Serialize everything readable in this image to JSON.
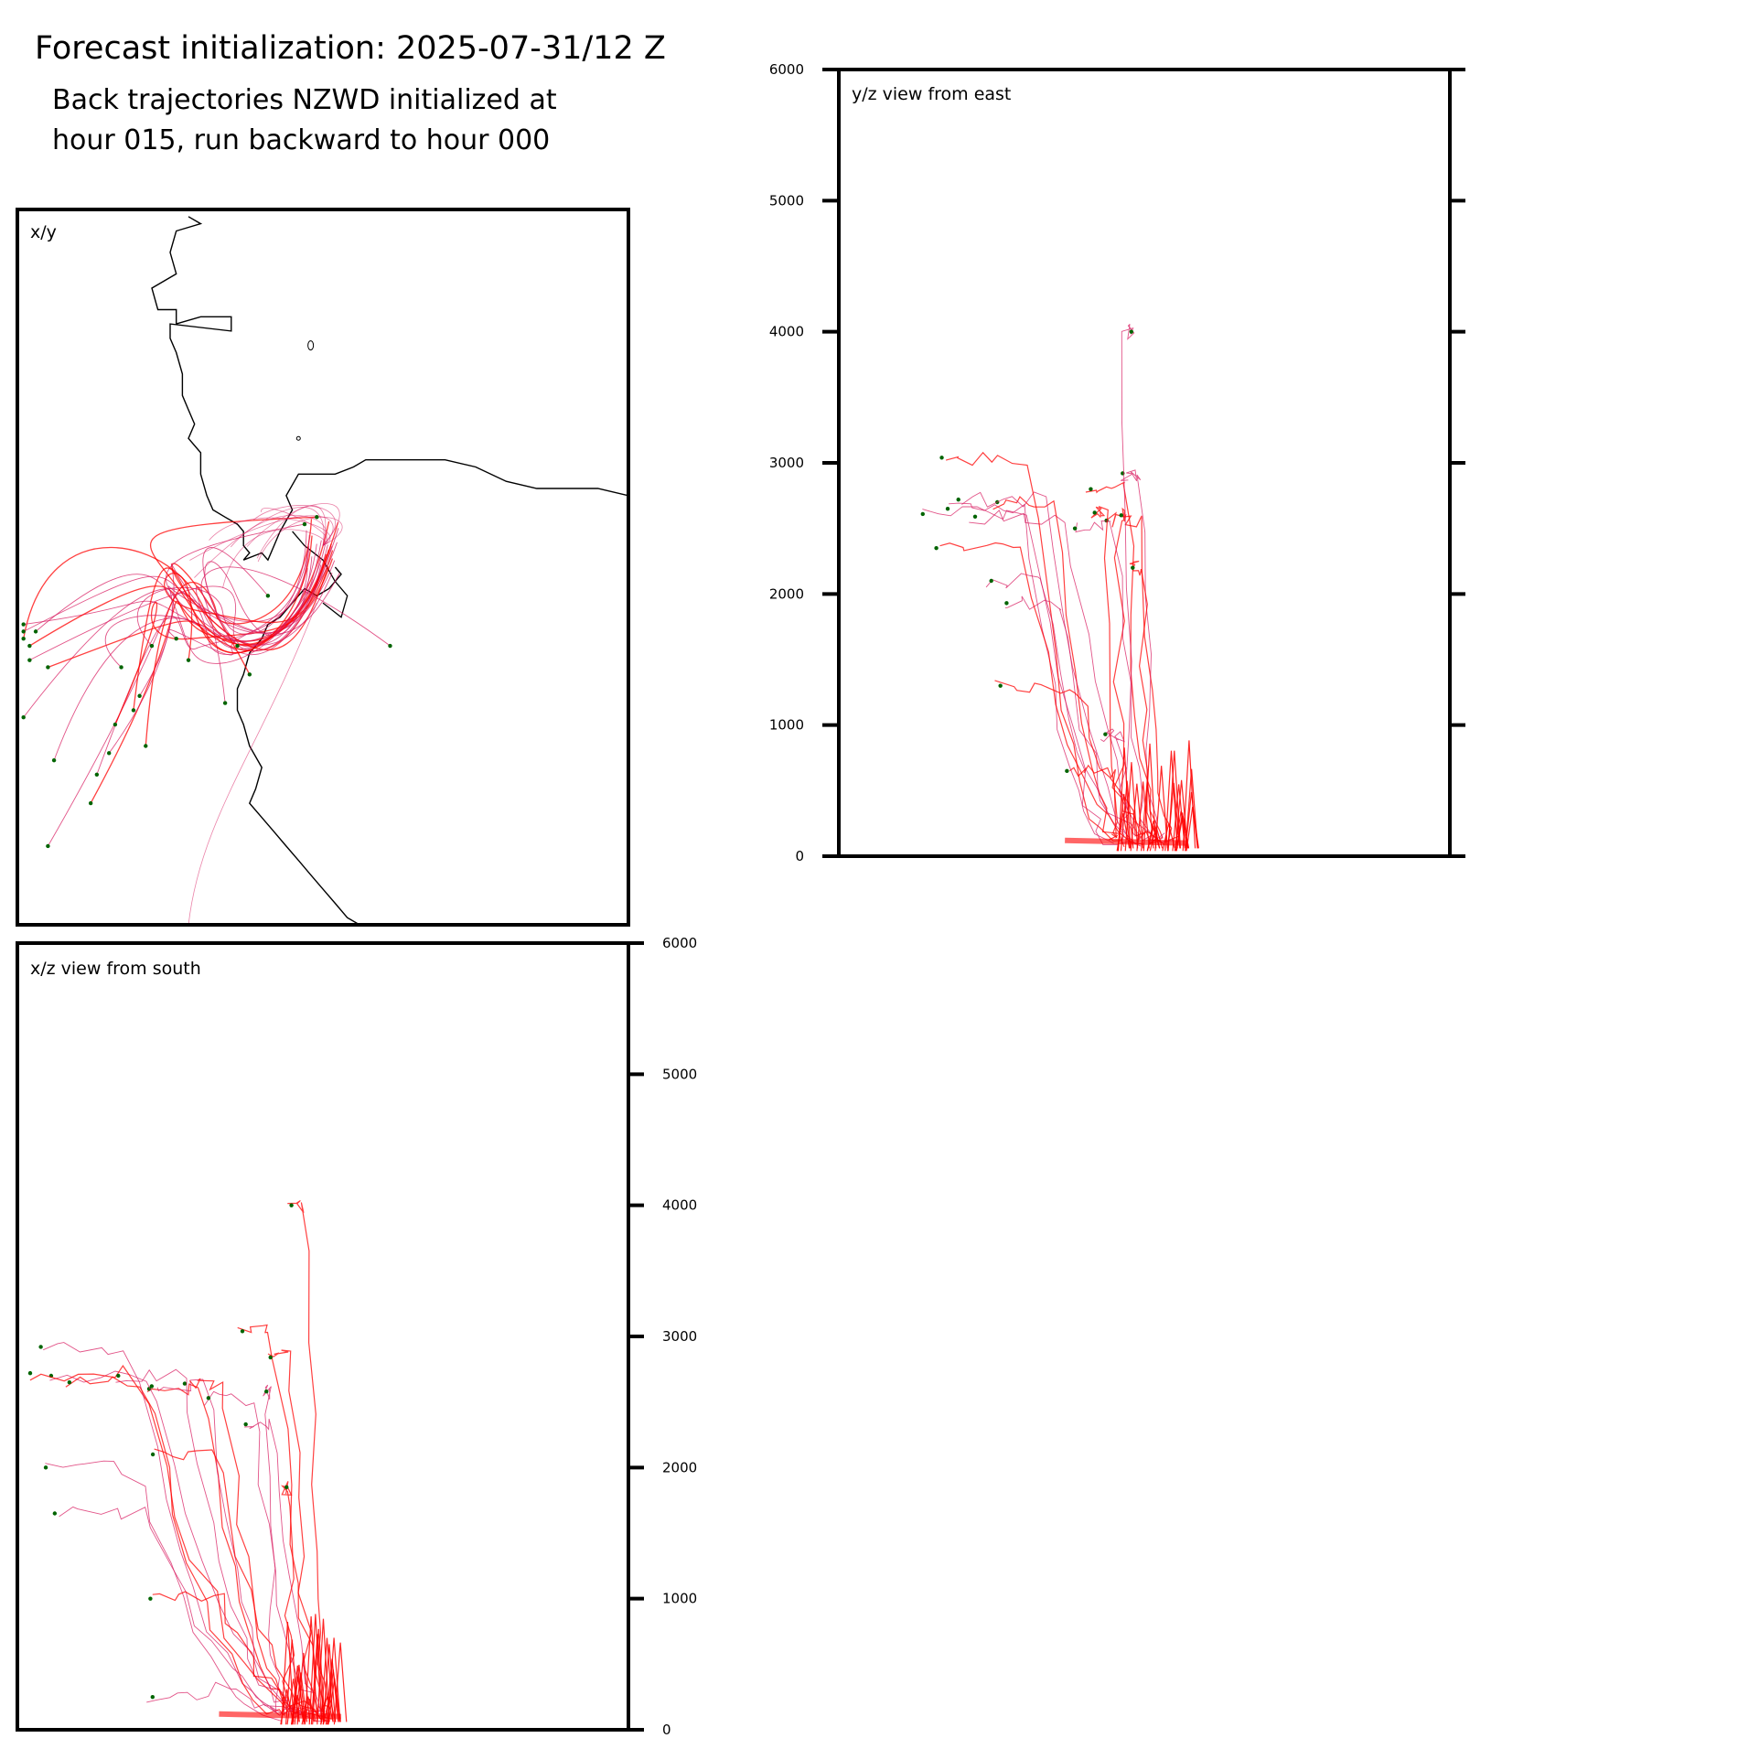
{
  "header": {
    "title": "Forecast initialization: 2025-07-31/12 Z",
    "subtitle_line1": "Back trajectories NZWD initialized at",
    "subtitle_line2": "hour 015, run backward to hour 000"
  },
  "colors": {
    "trajectory": "#d81b60",
    "trajectory_low": "#ff0000",
    "endpoint": "#006400",
    "coastline": "#000000",
    "frame": "#000000"
  },
  "chart_data": [
    {
      "id": "xy",
      "type": "line",
      "panel_label": "x/y",
      "note": "plan view of trajectories with coastline",
      "xlim": [
        0,
        1
      ],
      "ylim": [
        0,
        1
      ],
      "coastline": [
        [
          0.28,
          0.99
        ],
        [
          0.3,
          0.98
        ],
        [
          0.26,
          0.97
        ],
        [
          0.25,
          0.94
        ],
        [
          0.26,
          0.91
        ],
        [
          0.22,
          0.89
        ],
        [
          0.23,
          0.86
        ],
        [
          0.26,
          0.86
        ],
        [
          0.26,
          0.84
        ],
        [
          0.3,
          0.85
        ],
        [
          0.35,
          0.85
        ],
        [
          0.35,
          0.83
        ],
        [
          0.25,
          0.84
        ],
        [
          0.25,
          0.82
        ],
        [
          0.26,
          0.8
        ],
        [
          0.27,
          0.77
        ],
        [
          0.27,
          0.74
        ],
        [
          0.28,
          0.72
        ],
        [
          0.29,
          0.7
        ],
        [
          0.28,
          0.68
        ],
        [
          0.3,
          0.66
        ],
        [
          0.3,
          0.63
        ],
        [
          0.31,
          0.6
        ],
        [
          0.32,
          0.58
        ],
        [
          0.34,
          0.57
        ],
        [
          0.36,
          0.56
        ],
        [
          0.37,
          0.55
        ],
        [
          0.37,
          0.53
        ],
        [
          0.38,
          0.52
        ],
        [
          0.37,
          0.51
        ],
        [
          0.4,
          0.52
        ],
        [
          0.41,
          0.51
        ],
        [
          0.42,
          0.53
        ],
        [
          0.43,
          0.55
        ],
        [
          0.45,
          0.58
        ],
        [
          0.44,
          0.6
        ],
        [
          0.46,
          0.63
        ],
        [
          0.49,
          0.63
        ],
        [
          0.52,
          0.63
        ],
        [
          0.55,
          0.64
        ],
        [
          0.57,
          0.65
        ],
        [
          0.6,
          0.65
        ],
        [
          0.65,
          0.65
        ],
        [
          0.7,
          0.65
        ],
        [
          0.75,
          0.64
        ],
        [
          0.8,
          0.62
        ],
        [
          0.85,
          0.61
        ],
        [
          0.9,
          0.61
        ],
        [
          0.95,
          0.61
        ],
        [
          1.0,
          0.6
        ]
      ],
      "coastline_south": [
        [
          0.52,
          0.5
        ],
        [
          0.53,
          0.49
        ],
        [
          0.51,
          0.47
        ],
        [
          0.49,
          0.46
        ],
        [
          0.47,
          0.47
        ],
        [
          0.45,
          0.45
        ],
        [
          0.43,
          0.43
        ],
        [
          0.41,
          0.42
        ],
        [
          0.4,
          0.4
        ],
        [
          0.38,
          0.38
        ],
        [
          0.37,
          0.35
        ],
        [
          0.36,
          0.33
        ],
        [
          0.36,
          0.3
        ],
        [
          0.37,
          0.28
        ],
        [
          0.38,
          0.25
        ],
        [
          0.4,
          0.22
        ],
        [
          0.39,
          0.19
        ],
        [
          0.38,
          0.17
        ],
        [
          0.4,
          0.15
        ],
        [
          0.42,
          0.13
        ],
        [
          0.44,
          0.11
        ],
        [
          0.46,
          0.09
        ],
        [
          0.48,
          0.07
        ],
        [
          0.5,
          0.05
        ],
        [
          0.52,
          0.03
        ],
        [
          0.54,
          0.01
        ],
        [
          0.56,
          0.0
        ]
      ],
      "endpoints": [
        [
          0.01,
          0.4
        ],
        [
          0.01,
          0.41
        ],
        [
          0.01,
          0.42
        ],
        [
          0.02,
          0.39
        ],
        [
          0.02,
          0.37
        ],
        [
          0.01,
          0.29
        ],
        [
          0.05,
          0.36
        ],
        [
          0.06,
          0.23
        ],
        [
          0.05,
          0.11
        ],
        [
          0.12,
          0.17
        ],
        [
          0.13,
          0.21
        ],
        [
          0.15,
          0.24
        ],
        [
          0.16,
          0.28
        ],
        [
          0.17,
          0.36
        ],
        [
          0.2,
          0.32
        ],
        [
          0.21,
          0.25
        ],
        [
          0.22,
          0.39
        ],
        [
          0.26,
          0.4
        ],
        [
          0.28,
          0.37
        ],
        [
          0.34,
          0.31
        ],
        [
          0.36,
          0.39
        ],
        [
          0.38,
          0.35
        ],
        [
          0.41,
          0.46
        ],
        [
          0.47,
          0.56
        ],
        [
          0.49,
          0.57
        ],
        [
          0.61,
          0.39
        ],
        [
          0.03,
          0.41
        ],
        [
          0.19,
          0.3
        ]
      ]
    },
    {
      "id": "yz",
      "type": "line",
      "panel_label": "y/z view from east",
      "note": "height (m) versus north-south position",
      "ylim": [
        0,
        6000
      ],
      "yticks": [
        0,
        1000,
        2000,
        3000,
        4000,
        5000,
        6000
      ],
      "endpoint_heights": [
        2560,
        2590,
        2600,
        2610,
        2620,
        2650,
        2700,
        2720,
        2800,
        2920,
        3040,
        2500,
        2200,
        1930,
        2350,
        2100,
        1300,
        930,
        650,
        4000
      ]
    },
    {
      "id": "xz",
      "type": "line",
      "panel_label": "x/z view from south",
      "note": "height (m) versus east-west position",
      "ylim": [
        0,
        6000
      ],
      "yticks": [
        0,
        1000,
        2000,
        3000,
        4000,
        5000,
        6000
      ],
      "endpoint_heights": [
        2600,
        2620,
        2640,
        2700,
        2720,
        2580,
        3040,
        2920,
        2650,
        2700,
        2840,
        2330,
        2100,
        2000,
        1850,
        1650,
        1000,
        250,
        4000,
        2530
      ]
    }
  ]
}
